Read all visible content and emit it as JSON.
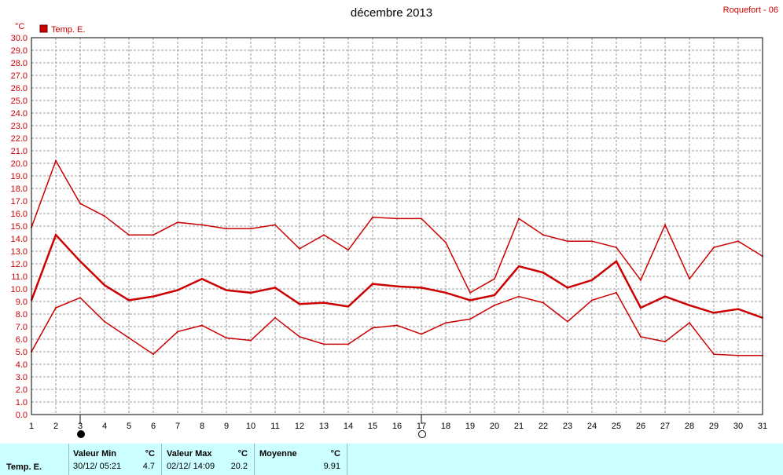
{
  "chart_data": {
    "type": "line",
    "title": "décembre 2013",
    "station": "Roquefort - 06",
    "y_unit": "°C",
    "legend": {
      "label": "Temp. E.",
      "color": "#cc0000",
      "placement": "top-left"
    },
    "ylim": [
      0,
      30
    ],
    "ytick_step": 1,
    "ytick_labels": [
      "0.0",
      "1.0",
      "2.0",
      "3.0",
      "4.0",
      "5.0",
      "6.0",
      "7.0",
      "8.0",
      "9.0",
      "10.0",
      "11.0",
      "12.0",
      "13.0",
      "14.0",
      "15.0",
      "16.0",
      "17.0",
      "18.0",
      "19.0",
      "20.0",
      "21.0",
      "22.0",
      "23.0",
      "24.0",
      "25.0",
      "26.0",
      "27.0",
      "28.0",
      "29.0",
      "30.0"
    ],
    "x": [
      "1",
      "2",
      "3",
      "4",
      "5",
      "6",
      "7",
      "8",
      "9",
      "10",
      "11",
      "12",
      "13",
      "14",
      "15",
      "16",
      "17",
      "18",
      "19",
      "20",
      "21",
      "22",
      "23",
      "24",
      "25",
      "26",
      "27",
      "28",
      "29",
      "30",
      "31"
    ],
    "grid": true,
    "series": [
      {
        "name": "max",
        "width": 1.5,
        "color": "#cc0000",
        "values": [
          14.9,
          20.2,
          16.8,
          15.8,
          14.3,
          14.3,
          15.3,
          15.1,
          14.8,
          14.8,
          15.1,
          13.2,
          14.3,
          13.1,
          15.7,
          15.6,
          15.6,
          13.7,
          9.7,
          10.8,
          15.6,
          14.3,
          13.8,
          13.8,
          13.3,
          10.7,
          15.1,
          10.8,
          13.3,
          13.8,
          12.6
        ]
      },
      {
        "name": "mean",
        "width": 2.5,
        "color": "#cc0000",
        "values": [
          9.1,
          14.3,
          12.2,
          10.3,
          9.1,
          9.4,
          9.9,
          10.8,
          9.9,
          9.7,
          10.1,
          8.8,
          8.9,
          8.6,
          10.4,
          10.2,
          10.1,
          9.7,
          9.1,
          9.5,
          11.8,
          11.3,
          10.1,
          10.7,
          12.2,
          8.5,
          9.4,
          8.7,
          8.1,
          8.4,
          7.7
        ]
      },
      {
        "name": "min",
        "width": 1.5,
        "color": "#cc0000",
        "values": [
          5.0,
          8.5,
          9.3,
          7.4,
          6.1,
          4.8,
          6.6,
          7.1,
          6.1,
          5.9,
          7.7,
          6.2,
          5.6,
          5.6,
          6.9,
          7.1,
          6.4,
          7.3,
          7.6,
          8.7,
          9.4,
          8.9,
          7.4,
          9.1,
          9.7,
          6.2,
          5.8,
          7.3,
          4.8,
          4.7,
          4.7
        ]
      }
    ],
    "moon_phases": [
      {
        "day": 3,
        "phase": "new"
      },
      {
        "day": 17,
        "phase": "full"
      }
    ]
  },
  "stats": {
    "series_label": "Temp. E.",
    "min": {
      "label": "Valeur Min",
      "unit": "°C",
      "datetime": "30/12/  05:21",
      "value": "4.7"
    },
    "max": {
      "label": "Valeur Max",
      "unit": "°C",
      "datetime": "02/12/  14:09",
      "value": "20.2"
    },
    "mean": {
      "label": "Moyenne",
      "unit": "°C",
      "value": "9.91"
    }
  }
}
